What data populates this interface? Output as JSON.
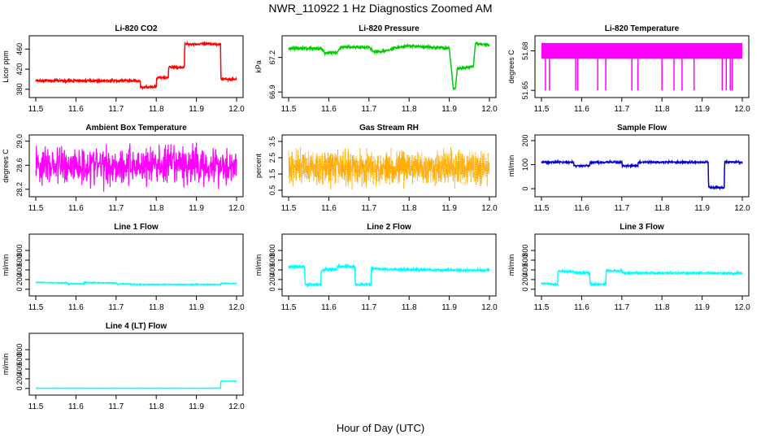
{
  "figure": {
    "title": "NWR_110922  1 Hz Diagnostics Zoomed AM",
    "xlabel": "Hour of Day (UTC)"
  },
  "chart_data": [
    {
      "type": "line",
      "title": "Li-820 CO2",
      "ylabel": "Licor ppm",
      "color": "#ff0000",
      "xlim": [
        11.5,
        12.0
      ],
      "xticks": [
        "11.5",
        "11.6",
        "11.7",
        "11.8",
        "11.9",
        "12.0"
      ],
      "ylim": [
        370,
        480
      ],
      "yticks": [
        380,
        420,
        460
      ],
      "ytick_labels": [
        "380",
        "420",
        "460"
      ],
      "points": [
        [
          11.5,
          397
        ],
        [
          11.76,
          397
        ],
        [
          11.761,
          384
        ],
        [
          11.8,
          384
        ],
        [
          11.801,
          403
        ],
        [
          11.83,
          403
        ],
        [
          11.831,
          424
        ],
        [
          11.87,
          424
        ],
        [
          11.871,
          470
        ],
        [
          11.96,
          470
        ],
        [
          11.961,
          400
        ],
        [
          12.0,
          400
        ]
      ],
      "noise": 1.2
    },
    {
      "type": "line",
      "title": "Li-820 Pressure",
      "ylabel": "kPa",
      "color": "#00cc00",
      "xlim": [
        11.5,
        12.0
      ],
      "xticks": [
        "11.5",
        "11.6",
        "11.7",
        "11.8",
        "11.9",
        "12.0"
      ],
      "ylim": [
        66.88,
        67.36
      ],
      "yticks": [
        66.9,
        67.2
      ],
      "ytick_labels": [
        "66.9",
        "67.2"
      ],
      "points": [
        [
          11.5,
          67.28
        ],
        [
          11.58,
          67.28
        ],
        [
          11.59,
          67.24
        ],
        [
          11.62,
          67.24
        ],
        [
          11.63,
          67.29
        ],
        [
          11.7,
          67.29
        ],
        [
          11.71,
          67.25
        ],
        [
          11.75,
          67.26
        ],
        [
          11.76,
          67.28
        ],
        [
          11.8,
          67.3
        ],
        [
          11.9,
          67.28
        ],
        [
          11.91,
          66.93
        ],
        [
          11.915,
          66.93
        ],
        [
          11.92,
          67.1
        ],
        [
          11.96,
          67.12
        ],
        [
          11.965,
          67.32
        ],
        [
          12.0,
          67.31
        ]
      ],
      "noise": 0.006
    },
    {
      "type": "line",
      "title": "Li-820 Temperature",
      "ylabel": "degrees C",
      "color": "#ff00ff",
      "xlim": [
        11.5,
        12.0
      ],
      "xticks": [
        "11.5",
        "11.6",
        "11.7",
        "11.8",
        "11.9",
        "12.0"
      ],
      "ylim": [
        51.647,
        51.689
      ],
      "yticks": [
        51.65,
        51.68
      ],
      "ytick_labels": [
        "51.65",
        "51.68"
      ],
      "band": [
        51.674,
        51.686
      ],
      "spikes": [
        11.51,
        11.52,
        11.585,
        11.59,
        11.59,
        11.64,
        11.66,
        11.725,
        11.74,
        11.8,
        11.83,
        11.85,
        11.88,
        11.95,
        11.96,
        11.97,
        11.975
      ],
      "spike_low": 51.65
    },
    {
      "type": "line",
      "title": "Ambient Box Temperature",
      "ylabel": "degrees C",
      "color": "#ff00ff",
      "xlim": [
        11.5,
        12.0
      ],
      "xticks": [
        "11.5",
        "11.6",
        "11.7",
        "11.8",
        "11.9",
        "12.0"
      ],
      "ylim": [
        28.13,
        29.05
      ],
      "yticks": [
        28.2,
        28.6,
        29.0
      ],
      "ytick_labels": [
        "28.2",
        "28.6",
        "29.0"
      ],
      "mean": 28.6,
      "noise": 0.16
    },
    {
      "type": "scatter",
      "title": "Gas Stream RH",
      "ylabel": "percent",
      "color": "#ffaa00",
      "xlim": [
        11.5,
        12.0
      ],
      "xticks": [
        "11.5",
        "11.6",
        "11.7",
        "11.8",
        "11.9",
        "12.0"
      ],
      "ylim": [
        0.3,
        3.7
      ],
      "yticks": [
        0.5,
        1.5,
        2.5,
        3.5
      ],
      "ytick_labels": [
        "0.5",
        "1.5",
        "2.5",
        "3.5"
      ],
      "mean": 1.9,
      "noise": 0.5
    },
    {
      "type": "line",
      "title": "Sample Flow",
      "ylabel": "ml/min",
      "color": "#0000cc",
      "xlim": [
        11.5,
        12.0
      ],
      "xticks": [
        "11.5",
        "11.6",
        "11.7",
        "11.8",
        "11.9",
        "12.0"
      ],
      "ylim": [
        -20,
        210
      ],
      "yticks": [
        0,
        100,
        200
      ],
      "ytick_labels": [
        "0",
        "100",
        "200"
      ],
      "points": [
        [
          11.5,
          110
        ],
        [
          11.58,
          110
        ],
        [
          11.581,
          95
        ],
        [
          11.62,
          95
        ],
        [
          11.621,
          110
        ],
        [
          11.7,
          110
        ],
        [
          11.701,
          95
        ],
        [
          11.74,
          95
        ],
        [
          11.741,
          110
        ],
        [
          11.915,
          110
        ],
        [
          11.916,
          5
        ],
        [
          11.955,
          5
        ],
        [
          11.956,
          112
        ],
        [
          12.0,
          110
        ]
      ],
      "noise": 2
    },
    {
      "type": "line",
      "title": "Line 1 Flow",
      "ylabel": "ml/min",
      "color": "#00ffff",
      "xlim": [
        11.5,
        12.0
      ],
      "xticks": [
        "11.5",
        "11.6",
        "11.7",
        "11.8",
        "11.9",
        "12.0"
      ],
      "ylim": [
        -70,
        1070
      ],
      "yticks": [
        0,
        200,
        400,
        600,
        800
      ],
      "ytick_labels": [
        "0",
        "200",
        "400",
        "600",
        "800"
      ],
      "points": [
        [
          11.5,
          140
        ],
        [
          11.58,
          130
        ],
        [
          11.581,
          90
        ],
        [
          11.585,
          115
        ],
        [
          11.62,
          115
        ],
        [
          11.621,
          140
        ],
        [
          11.7,
          130
        ],
        [
          11.705,
          90
        ],
        [
          11.71,
          115
        ],
        [
          11.75,
          100
        ],
        [
          11.96,
          100
        ],
        [
          11.961,
          120
        ],
        [
          12.0,
          120
        ]
      ],
      "noise": 4
    },
    {
      "type": "line",
      "title": "Line 2 Flow",
      "ylabel": "ml/min",
      "color": "#00ffff",
      "xlim": [
        11.5,
        12.0
      ],
      "xticks": [
        "11.5",
        "11.6",
        "11.7",
        "11.8",
        "11.9",
        "12.0"
      ],
      "ylim": [
        -70,
        1070
      ],
      "yticks": [
        0,
        200,
        400,
        600,
        800
      ],
      "ytick_labels": [
        "0",
        "200",
        "400",
        "600",
        "800"
      ],
      "points": [
        [
          11.5,
          460
        ],
        [
          11.54,
          460
        ],
        [
          11.541,
          100
        ],
        [
          11.58,
          100
        ],
        [
          11.581,
          380
        ],
        [
          11.59,
          410
        ],
        [
          11.62,
          420
        ],
        [
          11.621,
          470
        ],
        [
          11.665,
          470
        ],
        [
          11.666,
          100
        ],
        [
          11.705,
          100
        ],
        [
          11.706,
          430
        ],
        [
          11.75,
          410
        ],
        [
          12.0,
          390
        ]
      ],
      "noise": 12
    },
    {
      "type": "line",
      "title": "Line 3 Flow",
      "ylabel": "ml/min",
      "color": "#00ffff",
      "xlim": [
        11.5,
        12.0
      ],
      "xticks": [
        "11.5",
        "11.6",
        "11.7",
        "11.8",
        "11.9",
        "12.0"
      ],
      "ylim": [
        -70,
        1070
      ],
      "yticks": [
        0,
        200,
        400,
        600,
        800
      ],
      "ytick_labels": [
        "0",
        "200",
        "400",
        "600",
        "800"
      ],
      "points": [
        [
          11.5,
          120
        ],
        [
          11.54,
          100
        ],
        [
          11.541,
          370
        ],
        [
          11.58,
          370
        ],
        [
          11.581,
          340
        ],
        [
          11.62,
          340
        ],
        [
          11.621,
          100
        ],
        [
          11.66,
          100
        ],
        [
          11.661,
          380
        ],
        [
          11.7,
          380
        ],
        [
          11.701,
          340
        ],
        [
          12.0,
          330
        ]
      ],
      "noise": 10
    },
    {
      "type": "line",
      "title": "Line 4 (LT) Flow",
      "ylabel": "ml/min",
      "color": "#00ffff",
      "xlim": [
        11.5,
        12.0
      ],
      "xticks": [
        "11.5",
        "11.6",
        "11.7",
        "11.8",
        "11.9",
        "12.0"
      ],
      "ylim": [
        -70,
        1070
      ],
      "yticks": [
        0,
        200,
        400,
        600,
        800
      ],
      "ytick_labels": [
        "0",
        "200",
        "400",
        "600",
        "800"
      ],
      "points": [
        [
          11.5,
          5
        ],
        [
          11.96,
          5
        ],
        [
          11.961,
          150
        ],
        [
          12.0,
          150
        ]
      ],
      "noise": 1
    }
  ]
}
